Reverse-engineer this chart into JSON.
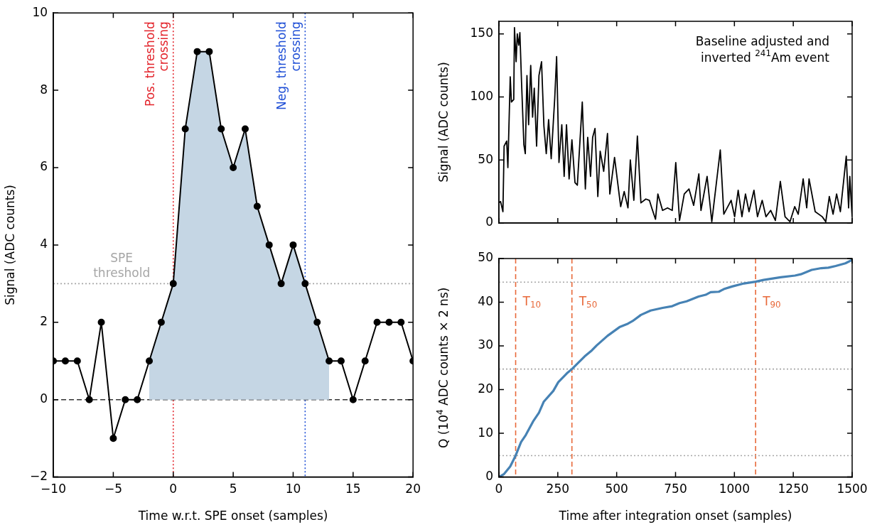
{
  "chart_data": [
    {
      "type": "line",
      "xlabel": "Time w.r.t. SPE onset (samples)",
      "ylabel": "Signal (ADC counts)",
      "marker": "circle",
      "xlim": [
        -10,
        20
      ],
      "ylim": [
        -2,
        10
      ],
      "xticks": [
        -10,
        -5,
        0,
        5,
        10,
        15,
        20
      ],
      "yticks": [
        -2,
        0,
        2,
        4,
        6,
        8,
        10
      ],
      "x": [
        -10,
        -9,
        -8,
        -7,
        -6,
        -5,
        -4,
        -3,
        -2,
        -1,
        0,
        1,
        2,
        3,
        4,
        5,
        6,
        7,
        8,
        9,
        10,
        11,
        12,
        13,
        14,
        15,
        16,
        17,
        18,
        19,
        20
      ],
      "series": [
        {
          "type": "line",
          "color": "#000000",
          "values": [
            1,
            1,
            1,
            0,
            2,
            -1,
            0,
            0,
            1,
            2,
            3,
            7,
            9,
            9,
            7,
            6,
            7,
            5,
            4,
            3,
            4,
            3,
            2,
            1,
            1,
            0,
            1,
            2,
            2,
            2,
            1
          ]
        },
        {
          "type": "area",
          "color": "#c5d6e4",
          "x": [
            -2,
            -1,
            0,
            1,
            2,
            3,
            4,
            5,
            6,
            7,
            8,
            9,
            10,
            11,
            12,
            13
          ],
          "values": [
            1,
            2,
            3,
            7,
            9,
            9,
            7,
            6,
            7,
            5,
            4,
            3,
            4,
            3,
            2,
            1
          ]
        }
      ],
      "ref_lines": [
        {
          "axis": "x",
          "value": 0,
          "label": "Pos. threshold crossing",
          "color": "#e3242b",
          "line_style": "dotted"
        },
        {
          "axis": "x",
          "value": 11,
          "label": "Neg. threshold crossing",
          "color": "#1f4fd6",
          "line_style": "dotted"
        },
        {
          "axis": "y",
          "value": 3,
          "label": "SPE threshold",
          "color": "#a6a6a6",
          "line_style": "dotted"
        },
        {
          "axis": "y",
          "value": 0,
          "color": "#333333",
          "line_style": "dashed"
        }
      ]
    },
    {
      "type": "line",
      "ylabel": "Signal (ADC counts)",
      "tick_labels": "y",
      "marker": "none",
      "xlim": [
        0,
        1500
      ],
      "ylim": [
        0,
        160
      ],
      "xticks": [
        0,
        250,
        500,
        750,
        1000,
        1250,
        1500
      ],
      "yticks": [
        0,
        50,
        100,
        150
      ],
      "annotations": [
        "Baseline adjusted and inverted $^{241}$Am event"
      ],
      "series": [
        {
          "color": "#000000",
          "x": [
            0,
            7,
            17,
            22,
            33,
            38,
            48,
            53,
            63,
            66,
            73,
            78,
            84,
            89,
            96,
            106,
            112,
            119,
            126,
            135,
            143,
            150,
            160,
            170,
            181,
            191,
            201,
            211,
            222,
            231,
            237,
            245,
            255,
            267,
            277,
            287,
            298,
            310,
            323,
            333,
            354,
            367,
            377,
            389,
            398,
            408,
            420,
            430,
            445,
            461,
            471,
            491,
            517,
            532,
            548,
            558,
            573,
            588,
            603,
            624,
            639,
            649,
            665,
            675,
            695,
            716,
            736,
            751,
            767,
            787,
            807,
            827,
            849,
            858,
            884,
            904,
            940,
            955,
            986,
            1001,
            1016,
            1032,
            1047,
            1062,
            1083,
            1098,
            1118,
            1134,
            1154,
            1174,
            1195,
            1215,
            1236,
            1256,
            1271,
            1292,
            1307,
            1317,
            1343,
            1373,
            1388,
            1403,
            1419,
            1434,
            1450,
            1475,
            1485,
            1490,
            1500
          ],
          "values": [
            16,
            17,
            9,
            61,
            65,
            44,
            116,
            96,
            98,
            155,
            128,
            150,
            141,
            151,
            112,
            62,
            55,
            117,
            78,
            125,
            84,
            107,
            61,
            117,
            128,
            77,
            55,
            82,
            51,
            80,
            99,
            132,
            48,
            78,
            37,
            78,
            35,
            66,
            32,
            30,
            96,
            27,
            68,
            37,
            68,
            75,
            21,
            57,
            41,
            71,
            23,
            52,
            13,
            25,
            12,
            50,
            18,
            69,
            16,
            19,
            18,
            12,
            3,
            23,
            10,
            12,
            10,
            48,
            2,
            23,
            27,
            14,
            39,
            10,
            37,
            1,
            58,
            7,
            18,
            5,
            26,
            5,
            23,
            9,
            26,
            5,
            18,
            5,
            10,
            2,
            33,
            5,
            1,
            13,
            7,
            35,
            12,
            35,
            9,
            5,
            1,
            21,
            7,
            23,
            9,
            53,
            12,
            37,
            5
          ]
        }
      ]
    },
    {
      "type": "line",
      "xlabel": "Time after integration onset (samples)",
      "ylabel": "Q (10$^{4}$ ADC counts × 2 ns)",
      "marker": "none",
      "xlim": [
        0,
        1500
      ],
      "ylim": [
        0,
        50
      ],
      "xticks": [
        0,
        250,
        500,
        750,
        1000,
        1250,
        1500
      ],
      "yticks": [
        0,
        10,
        20,
        30,
        40,
        50
      ],
      "series": [
        {
          "color": "#4682b4",
          "x": [
            0,
            22,
            48,
            71,
            94,
            114,
            145,
            170,
            190,
            231,
            252,
            288,
            310,
            338,
            364,
            395,
            415,
            461,
            512,
            548,
            568,
            603,
            644,
            695,
            736,
            767,
            797,
            848,
            878,
            899,
            934,
            955,
            990,
            1041,
            1090,
            1124,
            1196,
            1257,
            1282,
            1328,
            1369,
            1399,
            1430,
            1471,
            1500
          ],
          "values": [
            0,
            0.7,
            2.4,
            4.9,
            8,
            9.6,
            12.7,
            14.7,
            17.2,
            19.7,
            21.7,
            23.7,
            24.7,
            26.2,
            27.6,
            29,
            30.1,
            32.3,
            34.3,
            35.1,
            35.7,
            37.1,
            38.1,
            38.7,
            39.1,
            39.8,
            40.2,
            41.3,
            41.7,
            42.3,
            42.4,
            43,
            43.6,
            44.3,
            44.7,
            45.1,
            45.7,
            46.1,
            46.4,
            47.4,
            47.8,
            47.9,
            48.3,
            48.9,
            49.7
          ]
        }
      ],
      "ref_lines": [
        {
          "axis": "x",
          "value": 71,
          "label": "T$_{10}$",
          "color": "#e8693a",
          "line_style": "dashed"
        },
        {
          "axis": "x",
          "value": 310,
          "label": "T$_{50}$",
          "color": "#e8693a",
          "line_style": "dashed"
        },
        {
          "axis": "x",
          "value": 1090,
          "label": "T$_{90}$",
          "color": "#e8693a",
          "line_style": "dashed"
        },
        {
          "axis": "y",
          "value": 4.9,
          "color": "#a6a6a6",
          "line_style": "dotted"
        },
        {
          "axis": "y",
          "value": 24.7,
          "color": "#a6a6a6",
          "line_style": "dotted"
        },
        {
          "axis": "y",
          "value": 44.6,
          "color": "#a6a6a6",
          "line_style": "dotted"
        }
      ]
    }
  ]
}
